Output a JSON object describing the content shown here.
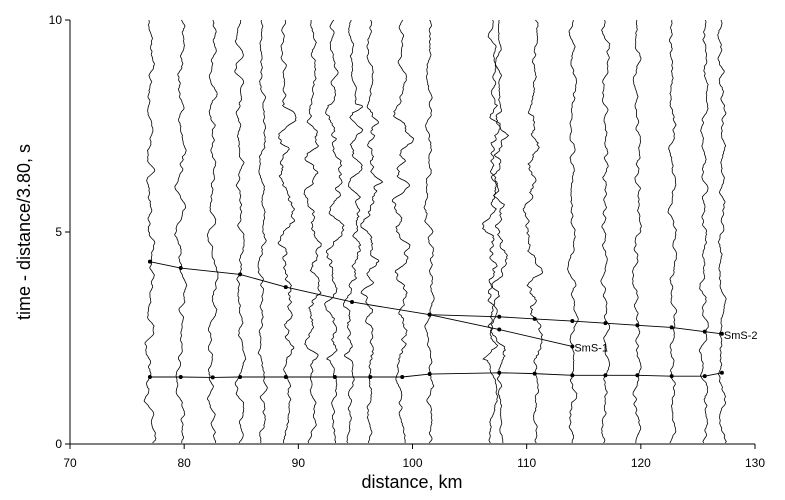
{
  "chart_data": {
    "type": "record-section",
    "xlabel": "distance, km",
    "ylabel": "time - distance/3.80, s",
    "xlim": [
      70,
      130
    ],
    "xticks": [
      70,
      80,
      90,
      100,
      110,
      120,
      130
    ],
    "ylim": [
      0,
      10
    ],
    "yticks": [
      0,
      5,
      10
    ],
    "traces": [
      77,
      79.7,
      82.5,
      84.9,
      86.8,
      88.9,
      91.2,
      93.2,
      94.7,
      96.3,
      99.1,
      101.5,
      107.0,
      107.6,
      110.7,
      114.0,
      116.9,
      119.7,
      122.7,
      125.6,
      127.1
    ],
    "trace_color": "#000000",
    "series": [
      {
        "name": "SmS-1",
        "color": "#000000",
        "x": [
          77,
          79.7,
          84.9,
          88.9,
          94.7,
          101.5,
          107.6,
          114.0
        ],
        "values": [
          4.3,
          4.15,
          4.0,
          3.7,
          3.35,
          3.05,
          2.7,
          2.3
        ]
      },
      {
        "name": "SmS-2",
        "color": "#000000",
        "x": [
          101.5,
          107.6,
          110.7,
          114.0,
          116.9,
          119.7,
          122.7,
          125.6,
          127.1
        ],
        "values": [
          3.05,
          3.0,
          2.95,
          2.9,
          2.85,
          2.8,
          2.75,
          2.65,
          2.6
        ]
      },
      {
        "color": "#000000",
        "x": [
          77,
          79.7,
          82.5,
          84.9,
          88.9,
          93.2,
          96.3,
          99.1,
          101.5,
          107.6,
          110.7,
          114.0,
          116.9,
          119.7,
          122.7,
          125.6,
          127.1
        ],
        "values": [
          1.58,
          1.58,
          1.57,
          1.58,
          1.58,
          1.58,
          1.58,
          1.58,
          1.65,
          1.68,
          1.66,
          1.62,
          1.62,
          1.62,
          1.6,
          1.6,
          1.68
        ]
      }
    ]
  }
}
